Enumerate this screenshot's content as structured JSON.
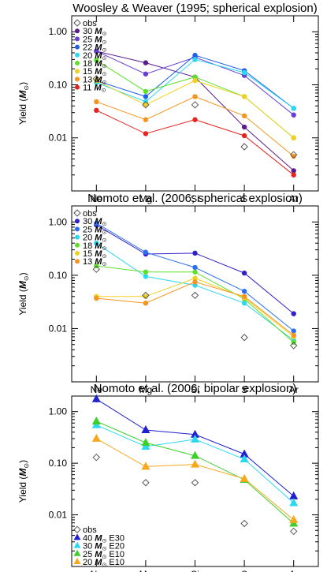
{
  "chart_data": [
    {
      "type": "line",
      "title": "Woosley & Weaver (1995; spherical explosion)",
      "ylabel": "Yield (",
      "ylabel_unit": "M",
      "ylabel_unit_sub": "⊙",
      "ylabel_close": ")",
      "yscale": "log",
      "ylim": [
        0.001,
        2
      ],
      "yticks": [
        1.0,
        0.1,
        0.01
      ],
      "ytick_labels": [
        "1.00",
        "0.10",
        "0.01"
      ],
      "categories": [
        "Ne",
        "Mg",
        "Si",
        "S",
        "Ar"
      ],
      "legend_position": "top-left",
      "obs": {
        "name": "obs",
        "values": [
          0.13,
          0.042,
          0.042,
          0.0068,
          0.0048
        ],
        "color": "#555555"
      },
      "series": [
        {
          "name": "30 ",
          "mass_symbol": "M",
          "sun_symbol": "⊙",
          "suffix": "",
          "marker": "circle",
          "color": "#5a1c8c",
          "values": [
            0.43,
            0.26,
            0.14,
            0.016,
            0.0024
          ]
        },
        {
          "name": "25 ",
          "mass_symbol": "M",
          "sun_symbol": "⊙",
          "suffix": "",
          "marker": "circle",
          "color": "#6a3fd0",
          "values": [
            0.43,
            0.16,
            0.33,
            0.15,
            0.027
          ]
        },
        {
          "name": "22 ",
          "mass_symbol": "M",
          "sun_symbol": "⊙",
          "suffix": "",
          "marker": "circle",
          "color": "#2060e8",
          "values": [
            0.12,
            0.06,
            0.36,
            0.185,
            0.036
          ]
        },
        {
          "name": "20 ",
          "mass_symbol": "M",
          "sun_symbol": "⊙",
          "suffix": "",
          "marker": "circle",
          "color": "#2ad8f0",
          "values": [
            0.11,
            0.048,
            0.3,
            0.17,
            0.036
          ]
        },
        {
          "name": "18 ",
          "mass_symbol": "M",
          "sun_symbol": "⊙",
          "suffix": "",
          "marker": "circle",
          "color": "#5ee02a",
          "values": [
            0.29,
            0.075,
            0.14,
            0.06,
            0.01
          ]
        },
        {
          "name": "15 ",
          "mass_symbol": "M",
          "sun_symbol": "⊙",
          "suffix": "",
          "marker": "circle",
          "color": "#f0d020",
          "values": [
            0.12,
            0.042,
            0.12,
            0.06,
            0.01
          ]
        },
        {
          "name": "13 ",
          "mass_symbol": "M",
          "sun_symbol": "⊙",
          "suffix": "",
          "marker": "circle",
          "color": "#f7941d",
          "values": [
            0.048,
            0.022,
            0.06,
            0.026,
            0.0045
          ]
        },
        {
          "name": "11 ",
          "mass_symbol": "M",
          "sun_symbol": "⊙",
          "suffix": "",
          "marker": "circle",
          "color": "#e8231f",
          "values": [
            0.033,
            0.012,
            0.022,
            0.011,
            0.002
          ]
        }
      ]
    },
    {
      "type": "line",
      "title": "Nomoto et al. (2006; spherical explosion)",
      "ylabel": "Yield (",
      "ylabel_unit": "M",
      "ylabel_unit_sub": "⊙",
      "ylabel_close": ")",
      "yscale": "log",
      "ylim": [
        0.001,
        2
      ],
      "yticks": [
        1.0,
        0.1,
        0.01
      ],
      "ytick_labels": [
        "1.00",
        "0.10",
        "0.01"
      ],
      "categories": [
        "Ne",
        "Mg",
        "Si",
        "S",
        "Ar"
      ],
      "legend_position": "top-left",
      "obs": {
        "name": "obs",
        "values": [
          0.13,
          0.042,
          0.042,
          0.0068,
          0.0048
        ],
        "color": "#555555"
      },
      "series": [
        {
          "name": "30 ",
          "mass_symbol": "M",
          "sun_symbol": "⊙",
          "suffix": "",
          "marker": "circle",
          "color": "#2f20c8",
          "values": [
            0.88,
            0.25,
            0.26,
            0.11,
            0.019
          ]
        },
        {
          "name": "25 ",
          "mass_symbol": "M",
          "sun_symbol": "⊙",
          "suffix": "",
          "marker": "circle",
          "color": "#2b6ff0",
          "values": [
            0.95,
            0.27,
            0.14,
            0.05,
            0.009
          ]
        },
        {
          "name": "20 ",
          "mass_symbol": "M",
          "sun_symbol": "⊙",
          "suffix": "",
          "marker": "circle",
          "color": "#2ad8f0",
          "values": [
            0.4,
            0.095,
            0.065,
            0.03,
            0.006
          ]
        },
        {
          "name": "18 ",
          "mass_symbol": "M",
          "sun_symbol": "⊙",
          "suffix": "",
          "marker": "circle",
          "color": "#5ee02a",
          "values": [
            0.15,
            0.115,
            0.115,
            0.036,
            0.0055
          ]
        },
        {
          "name": "15 ",
          "mass_symbol": "M",
          "sun_symbol": "⊙",
          "suffix": "",
          "marker": "circle",
          "color": "#f0d020",
          "values": [
            0.04,
            0.04,
            0.088,
            0.038,
            0.007
          ]
        },
        {
          "name": "13 ",
          "mass_symbol": "M",
          "sun_symbol": "⊙",
          "suffix": "",
          "marker": "circle",
          "color": "#f7941d",
          "values": [
            0.037,
            0.03,
            0.075,
            0.04,
            0.0075
          ]
        }
      ]
    },
    {
      "type": "line",
      "title": "Nomoto et al. (2006; bipolar explosion)",
      "ylabel": "Yield (",
      "ylabel_unit": "M",
      "ylabel_unit_sub": "⊙",
      "ylabel_close": ")",
      "yscale": "log",
      "ylim": [
        0.001,
        2
      ],
      "yticks": [
        1.0,
        0.1,
        0.01
      ],
      "ytick_labels": [
        "1.00",
        "0.10",
        "0.01"
      ],
      "categories": [
        "Ne",
        "Mg",
        "Si",
        "S",
        "Ar"
      ],
      "legend_position": "bottom-left",
      "obs": {
        "name": "obs",
        "values": [
          0.13,
          0.042,
          0.042,
          0.0068,
          0.0048
        ],
        "color": "#555555"
      },
      "series": [
        {
          "name": "40 ",
          "mass_symbol": "M",
          "sun_symbol": "⊙",
          "suffix": " E30",
          "marker": "triangle",
          "color": "#2020d0",
          "values": [
            1.75,
            0.44,
            0.36,
            0.15,
            0.023
          ]
        },
        {
          "name": "30 ",
          "mass_symbol": "M",
          "sun_symbol": "⊙",
          "suffix": " E20",
          "marker": "triangle",
          "color": "#2ad8f0",
          "values": [
            0.55,
            0.21,
            0.29,
            0.12,
            0.017
          ]
        },
        {
          "name": "25 ",
          "mass_symbol": "M",
          "sun_symbol": "⊙",
          "suffix": " E10",
          "marker": "triangle",
          "color": "#3ed02a",
          "values": [
            0.65,
            0.25,
            0.14,
            0.048,
            0.0068
          ]
        },
        {
          "name": "20 ",
          "mass_symbol": "M",
          "sun_symbol": "⊙",
          "suffix": " E10",
          "marker": "triangle",
          "color": "#f7a81d",
          "values": [
            0.3,
            0.086,
            0.095,
            0.05,
            0.008
          ]
        }
      ]
    }
  ]
}
